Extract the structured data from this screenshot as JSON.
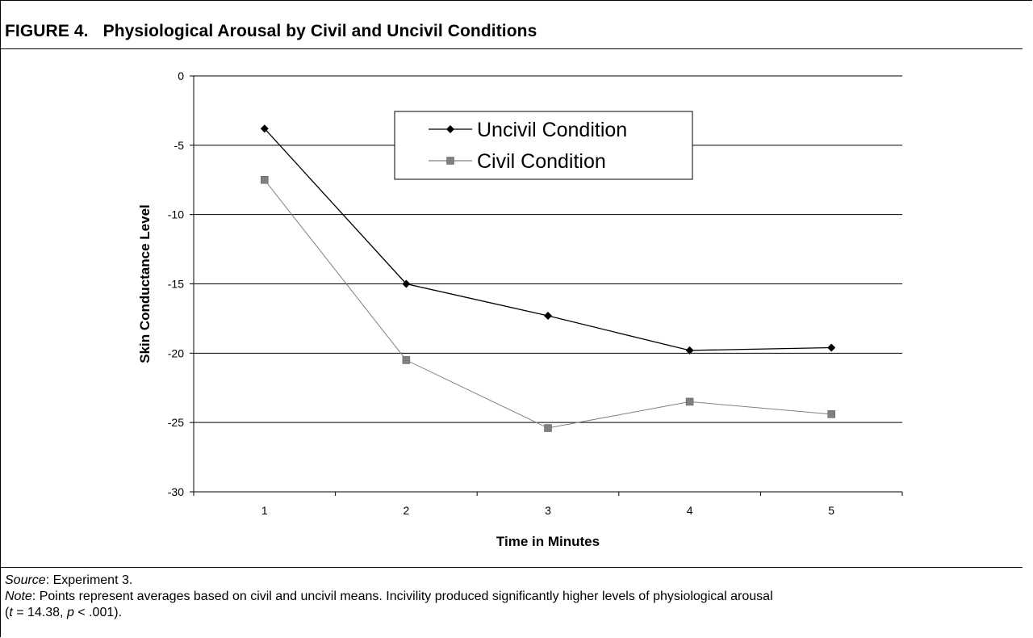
{
  "figure": {
    "label": "FIGURE 4.",
    "title": "Physiological Arousal by Civil and Uncivil Conditions"
  },
  "caption": {
    "source_label": "Source",
    "source_text": ": Experiment 3.",
    "note_label": "Note",
    "note_text_line1": ": Points represent averages based on civil and uncivil means. Incivility produced significantly higher levels of physiological arousal",
    "note_stat_open": "(",
    "note_t": "t",
    "note_t_value": " = 14.38, ",
    "note_p": "p",
    "note_p_value": " < .001)."
  },
  "chart_data": {
    "type": "line",
    "x": [
      1,
      2,
      3,
      4,
      5
    ],
    "xlabel": "Time in Minutes",
    "ylabel": "Skin Conductance Level",
    "ylim": [
      -30,
      0
    ],
    "yticks": [
      0,
      -5,
      -10,
      -15,
      -20,
      -25,
      -30
    ],
    "grid": true,
    "legend_position": "top-center",
    "series": [
      {
        "name": "Uncivil Condition",
        "marker": "diamond",
        "color": "#000000",
        "values": [
          -3.8,
          -15.0,
          -17.3,
          -19.8,
          -19.6
        ]
      },
      {
        "name": "Civil Condition",
        "marker": "square",
        "color": "#808080",
        "values": [
          -7.5,
          -20.5,
          -25.4,
          -23.5,
          -24.4
        ]
      }
    ]
  }
}
